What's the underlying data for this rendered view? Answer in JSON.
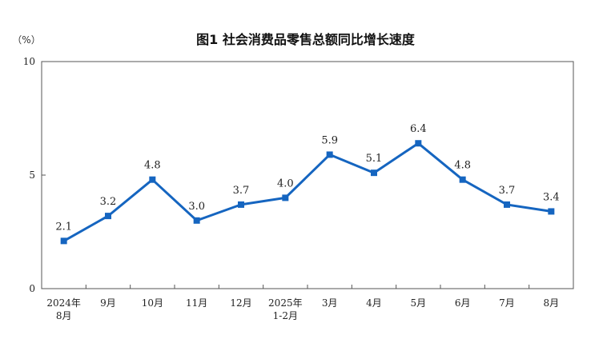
{
  "chart_data": {
    "type": "line",
    "title": "图1  社会消费品零售总额同比增长速度",
    "unit_label": "（%）",
    "xlabel": "",
    "ylabel": "",
    "ylim": [
      0,
      10
    ],
    "yticks": [
      "0",
      "5",
      "10"
    ],
    "grid": false,
    "legend": "none",
    "categories": [
      [
        "2024年",
        "8月"
      ],
      [
        "9月"
      ],
      [
        "10月"
      ],
      [
        "11月"
      ],
      [
        "12月"
      ],
      [
        "2025年",
        "1-2月"
      ],
      [
        "3月"
      ],
      [
        "4月"
      ],
      [
        "5月"
      ],
      [
        "6月"
      ],
      [
        "7月"
      ],
      [
        "8月"
      ]
    ],
    "series": [
      {
        "values": [
          2.1,
          3.2,
          4.8,
          3.0,
          3.7,
          4.0,
          5.9,
          5.1,
          6.4,
          4.8,
          3.7,
          3.4
        ],
        "labels": [
          "2.1",
          "3.2",
          "4.8",
          "3.0",
          "3.7",
          "4.0",
          "5.9",
          "5.1",
          "6.4",
          "4.8",
          "3.7",
          "3.4"
        ],
        "color": "#1565c0"
      }
    ]
  }
}
